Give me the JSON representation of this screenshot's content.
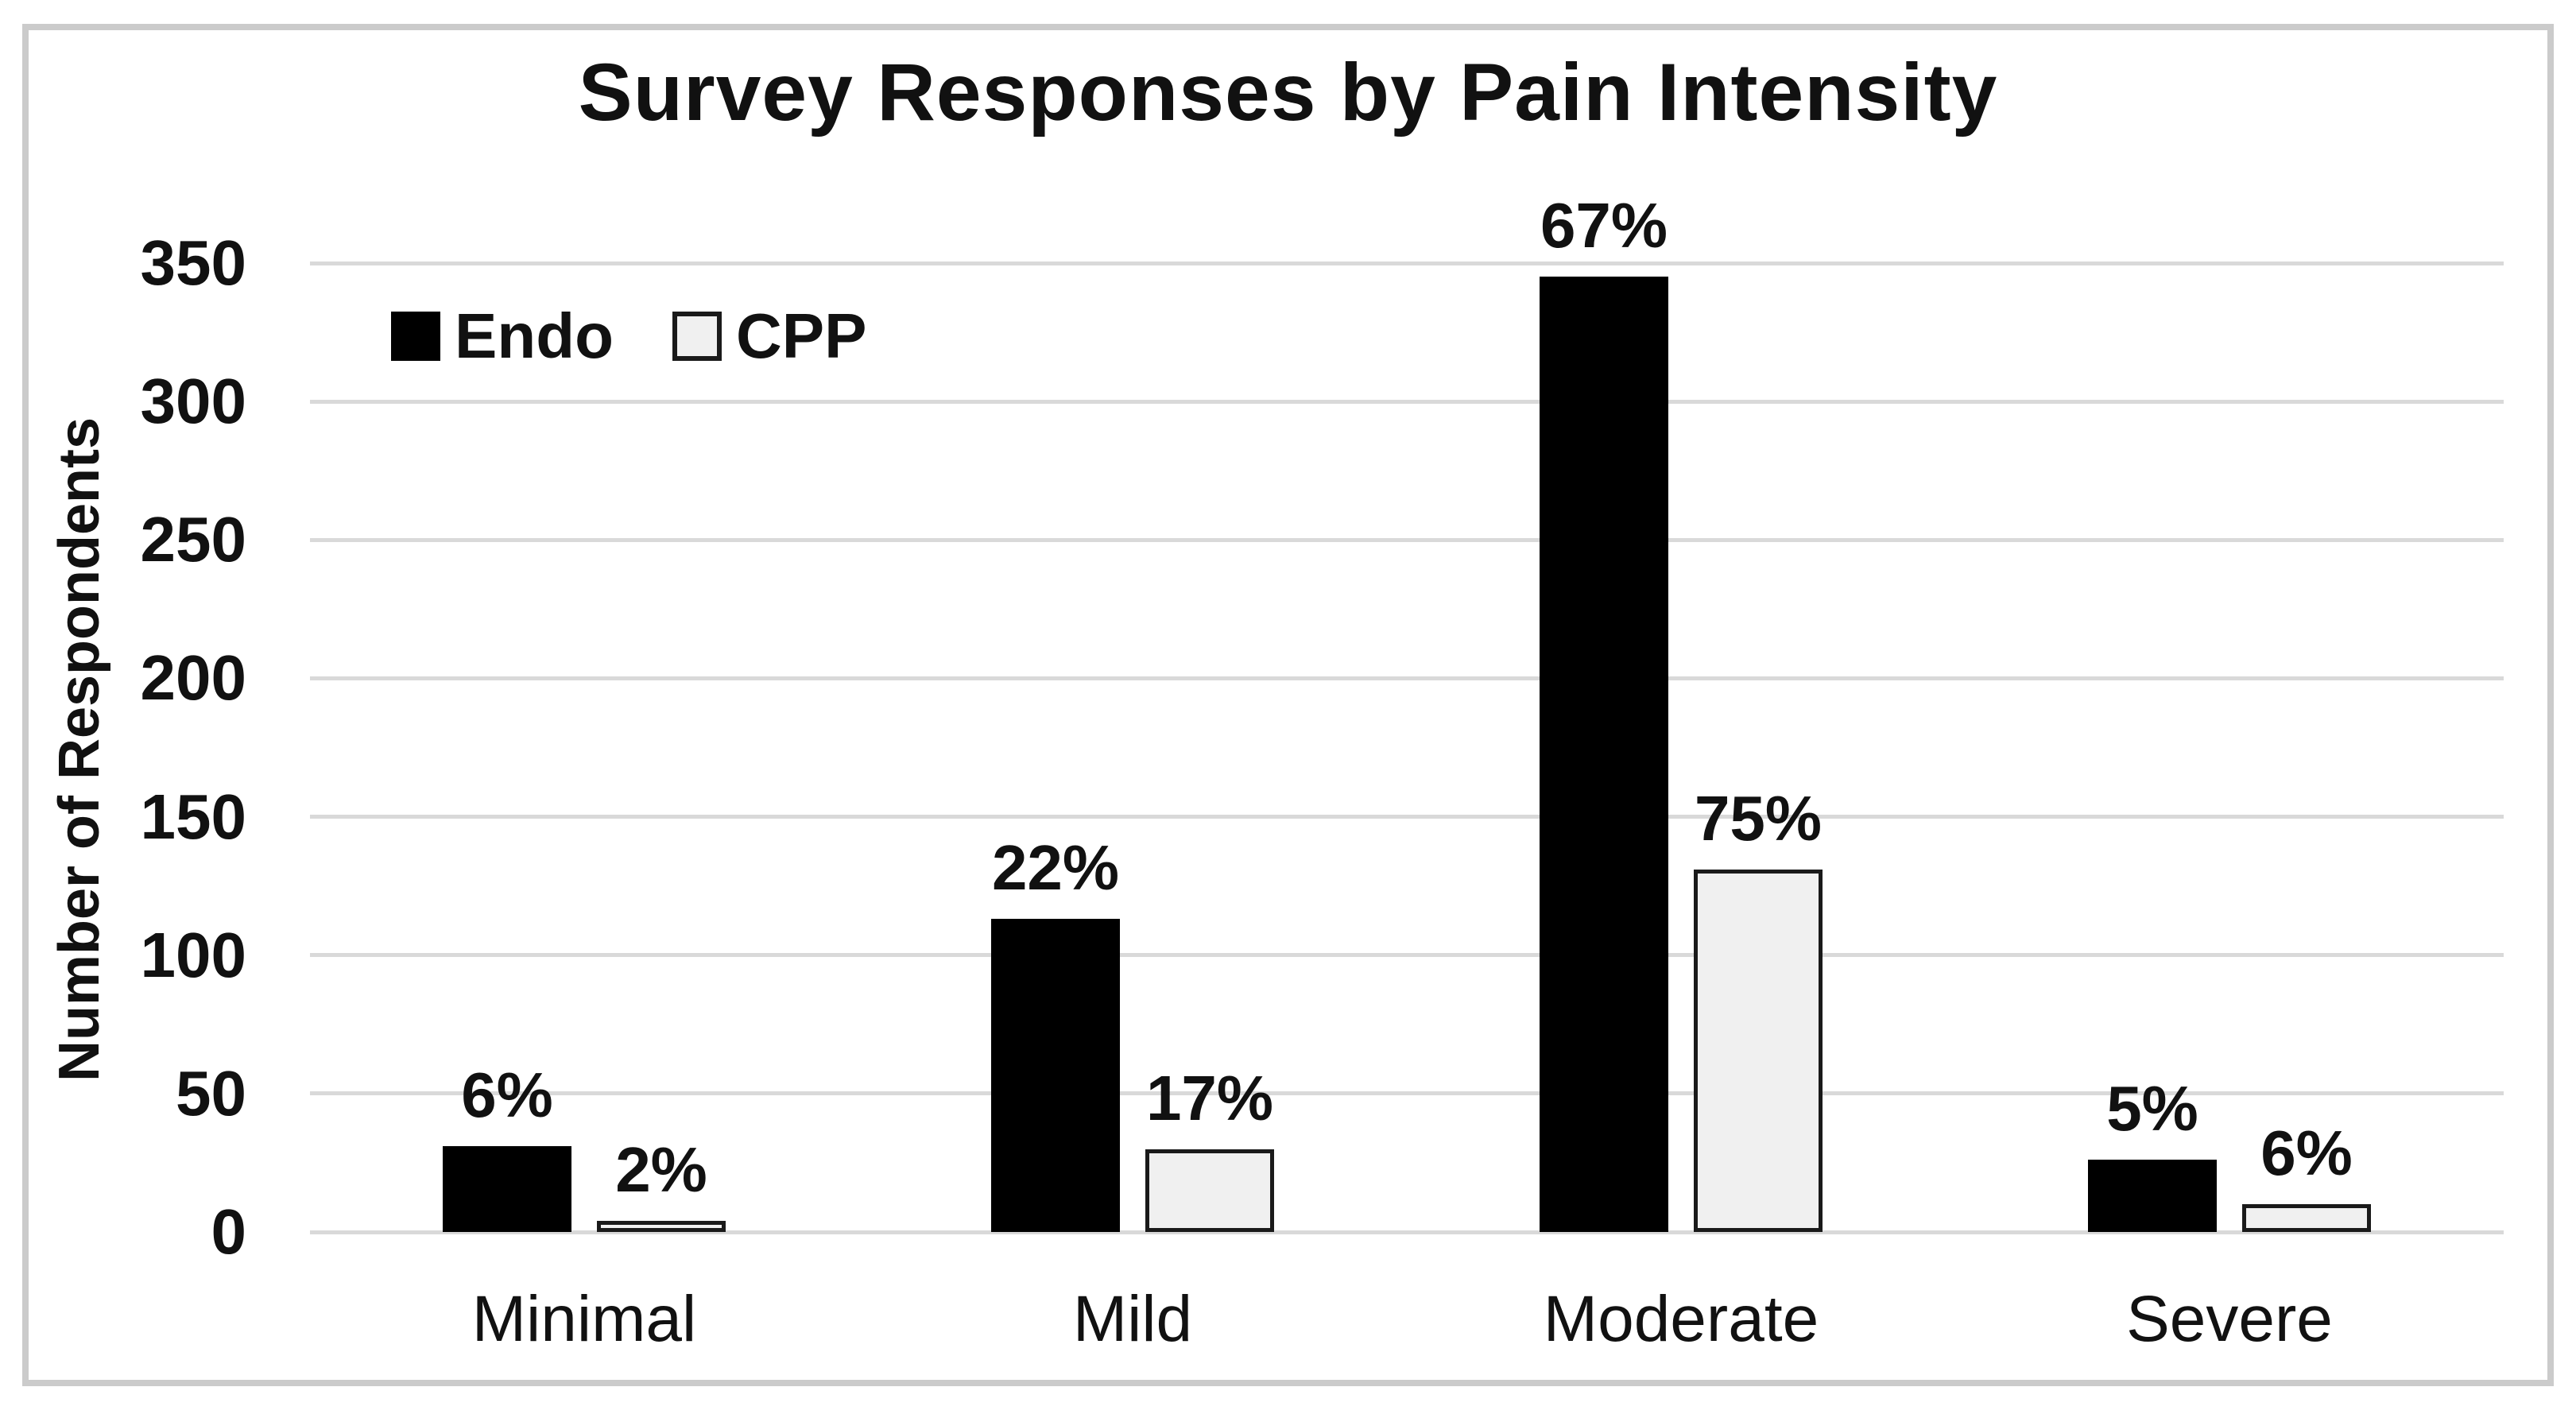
{
  "chart_data": {
    "type": "bar",
    "title": "Survey Responses by Pain Intensity",
    "xlabel": "",
    "ylabel": "Number of Respondents",
    "categories": [
      "Minimal",
      "Mild",
      "Moderate",
      "Severe"
    ],
    "series": [
      {
        "name": "Endo",
        "values": [
          31,
          113,
          345,
          26
        ],
        "data_labels": [
          "6%",
          "22%",
          "67%",
          "5%"
        ],
        "fill": "#000000",
        "border": "#000000"
      },
      {
        "name": "CPP",
        "values": [
          4,
          30,
          131,
          10
        ],
        "data_labels": [
          "2%",
          "17%",
          "75%",
          "6%"
        ],
        "fill": "#f0f0f0",
        "border": "#1a1a1a"
      }
    ],
    "ylim": [
      0,
      350
    ],
    "yticks": [
      0,
      50,
      100,
      150,
      200,
      250,
      300,
      350
    ],
    "grid": "horizontal",
    "gridline_color": "#d9d9d9",
    "legend_position": "inside-top-left",
    "data_label_style": "percent-outside-end"
  }
}
